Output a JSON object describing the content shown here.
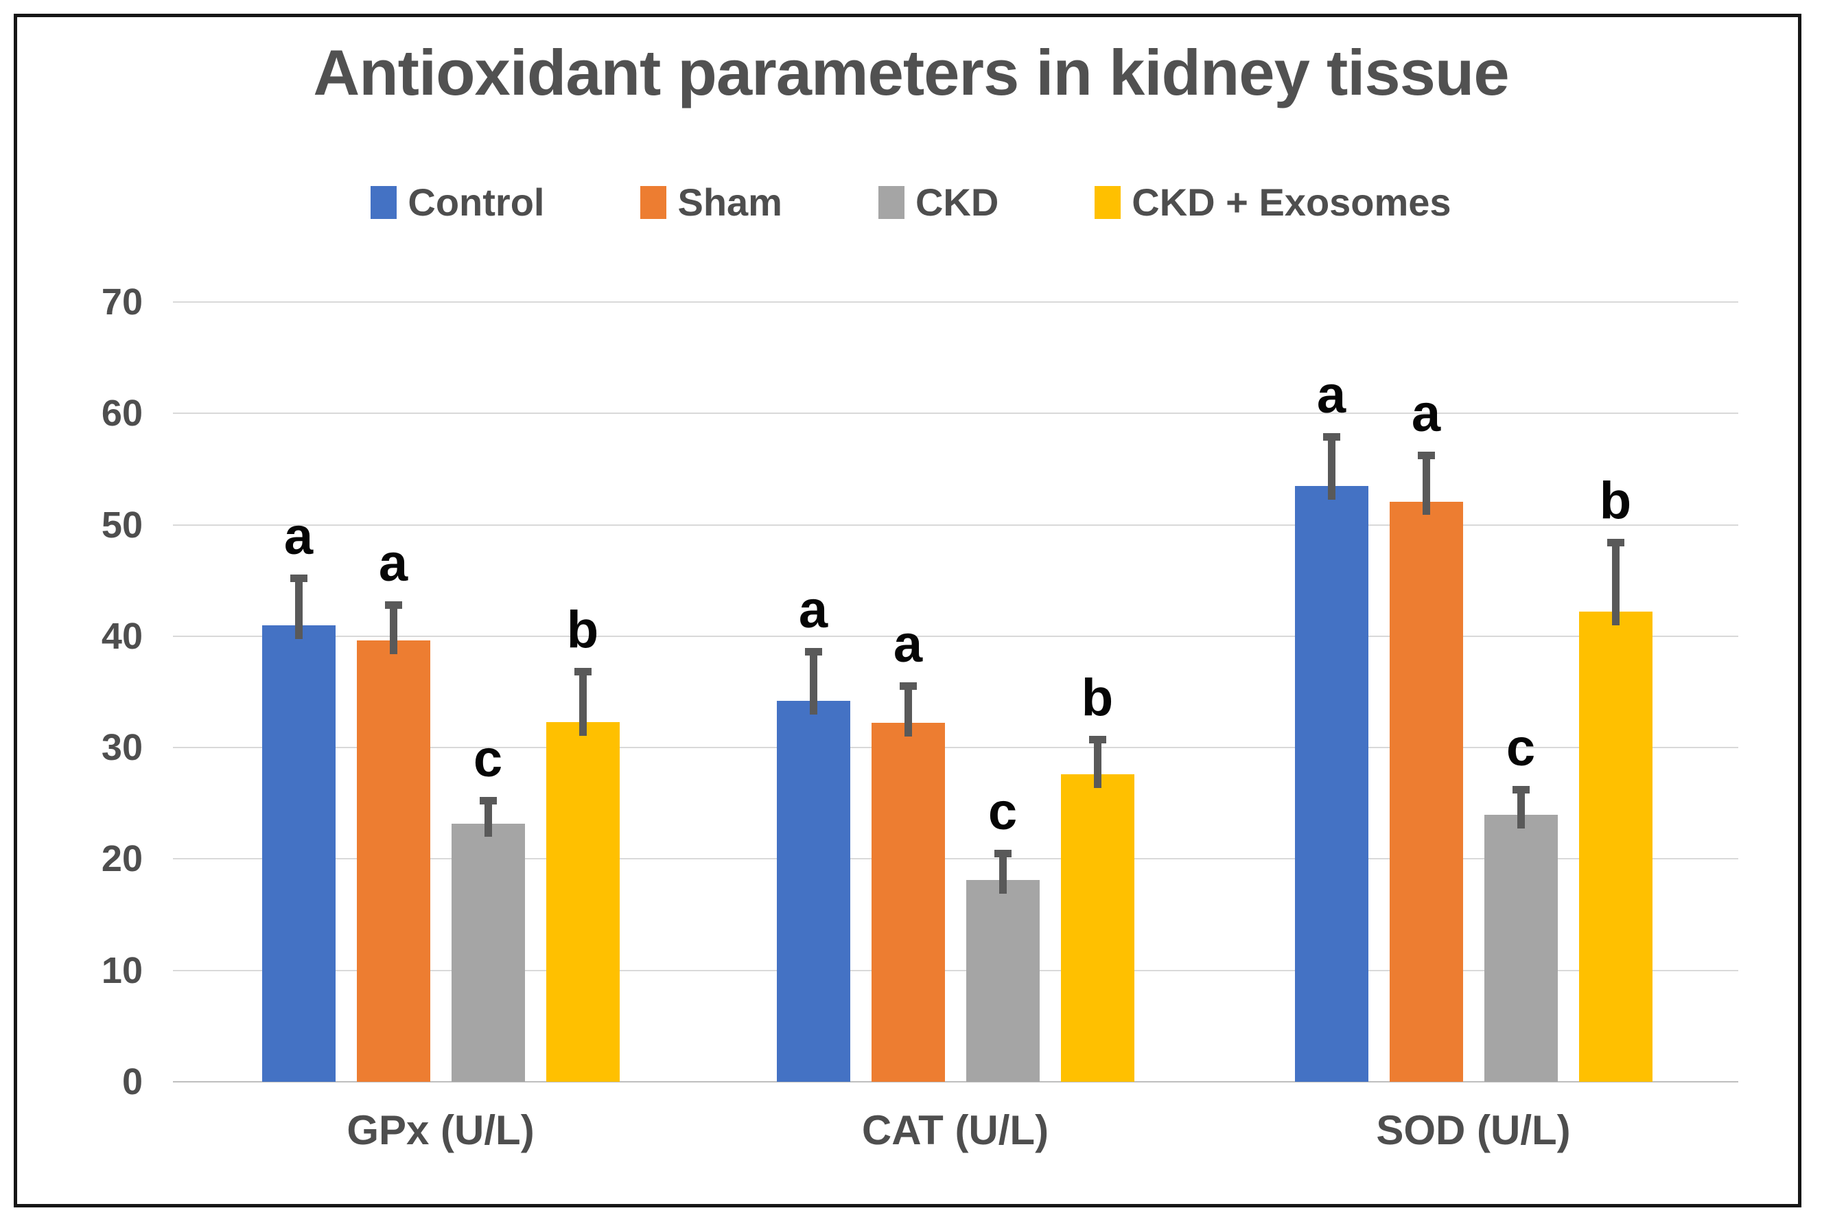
{
  "chart_data": {
    "type": "bar",
    "title": "Antioxidant parameters in kidney tissue",
    "categories": [
      "GPx (U/L)",
      "CAT (U/L)",
      "SOD (U/L)"
    ],
    "series": [
      {
        "name": "Control",
        "color": "#4472C4",
        "values": [
          41.0,
          34.2,
          53.5
        ],
        "errors_plus": [
          4.0,
          4.2,
          4.2
        ],
        "letters": [
          "a",
          "a",
          "a"
        ]
      },
      {
        "name": "Sham",
        "color": "#ED7D31",
        "values": [
          39.6,
          32.2,
          52.1
        ],
        "errors_plus": [
          3.0,
          3.1,
          3.9
        ],
        "letters": [
          "a",
          "a",
          "a"
        ]
      },
      {
        "name": "CKD",
        "color": "#A5A5A5",
        "values": [
          23.2,
          18.1,
          24.0
        ],
        "errors_plus": [
          1.8,
          2.2,
          2.0
        ],
        "letters": [
          "c",
          "c",
          "c"
        ]
      },
      {
        "name": "CKD + Exosomes",
        "color": "#FFC000",
        "values": [
          32.3,
          27.6,
          42.2
        ],
        "errors_plus": [
          4.3,
          2.9,
          6.0
        ],
        "letters": [
          "b",
          "b",
          "b"
        ]
      }
    ],
    "ylim": [
      0,
      70
    ],
    "yticks": [
      0,
      10,
      20,
      30,
      40,
      50,
      60,
      70
    ],
    "grid": "horizontal",
    "legend_position": "top",
    "annotation_note": "letters a/b/c mark statistical significance groups above error bars",
    "colors": {
      "error_bar": "#595959",
      "gridline": "#d9d9d9",
      "axis_text": "#4e4e4e",
      "title_text": "#515151",
      "letter_text": "#060606",
      "frame_border": "#161616",
      "background": "#ffffff"
    }
  }
}
